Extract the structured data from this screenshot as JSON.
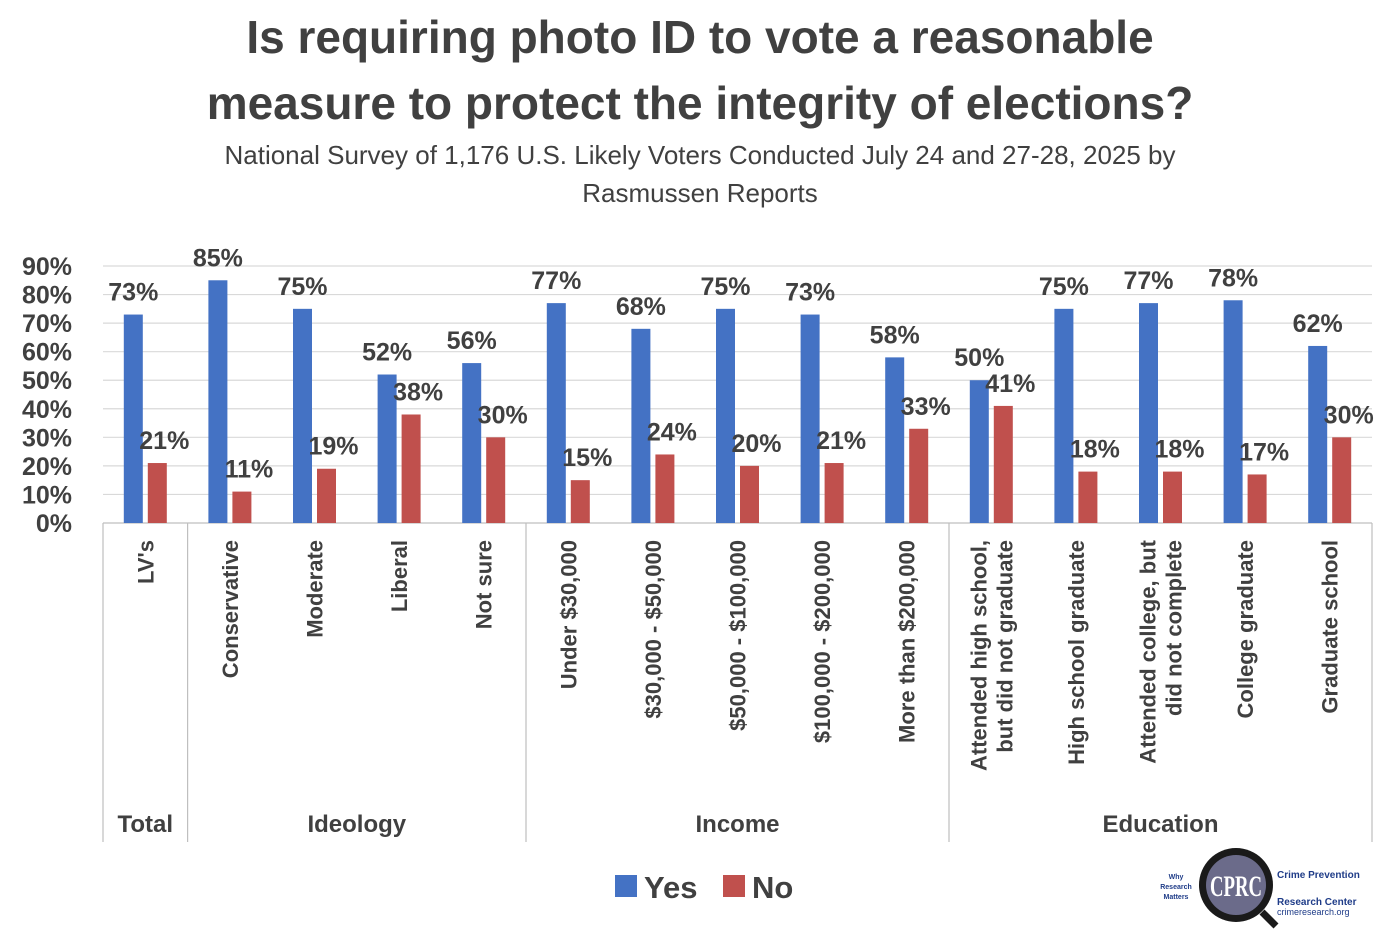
{
  "chart_data": {
    "type": "bar",
    "title_lines": [
      "Is requiring photo ID to vote a reasonable",
      "measure to protect the integrity of elections?"
    ],
    "subtitle_lines": [
      "National Survey of 1,176 U.S. Likely Voters Conducted July 24 and 27-28, 2025 by",
      "Rasmussen Reports"
    ],
    "ylim": [
      0,
      90
    ],
    "yticks": [
      0,
      10,
      20,
      30,
      40,
      50,
      60,
      70,
      80,
      90
    ],
    "ytick_labels": [
      "0%",
      "10%",
      "20%",
      "30%",
      "40%",
      "50%",
      "60%",
      "70%",
      "80%",
      "90%"
    ],
    "grid": true,
    "legend_placement": "bottom-center",
    "categories": [
      [
        "LV's"
      ],
      [
        "Conservative"
      ],
      [
        "Moderate"
      ],
      [
        "Liberal"
      ],
      [
        "Not sure"
      ],
      [
        "Under $30,000"
      ],
      [
        "$30,000 - $50,000"
      ],
      [
        "$50,000 - $100,000"
      ],
      [
        "$100,000 - $200,000"
      ],
      [
        "More than $200,000"
      ],
      [
        "Attended high school,",
        "but did not graduate"
      ],
      [
        "High school graduate"
      ],
      [
        "Attended college, but",
        "did not complete"
      ],
      [
        "College graduate"
      ],
      [
        "Graduate school"
      ]
    ],
    "groups": [
      {
        "name": "Total",
        "count": 1
      },
      {
        "name": "Ideology",
        "count": 4
      },
      {
        "name": "Income",
        "count": 5
      },
      {
        "name": "Education",
        "count": 5
      }
    ],
    "series": [
      {
        "name": "Yes",
        "color": "#4472c4",
        "values": [
          73,
          85,
          75,
          52,
          56,
          77,
          68,
          75,
          73,
          58,
          50,
          75,
          77,
          78,
          62
        ],
        "labels": [
          "73%",
          "85%",
          "75%",
          "52%",
          "56%",
          "77%",
          "68%",
          "75%",
          "73%",
          "58%",
          "50%",
          "75%",
          "77%",
          "78%",
          "62%"
        ]
      },
      {
        "name": "No",
        "color": "#c0504d",
        "values": [
          21,
          11,
          19,
          38,
          30,
          15,
          24,
          20,
          21,
          33,
          41,
          18,
          18,
          17,
          30
        ],
        "labels": [
          "21%",
          "11%",
          "19%",
          "38%",
          "30%",
          "15%",
          "24%",
          "20%",
          "21%",
          "33%",
          "41%",
          "18%",
          "18%",
          "17%",
          "30%"
        ]
      }
    ]
  },
  "logo": {
    "tagline": [
      "Why",
      "Research",
      "Matters"
    ],
    "monogram": "CPRC",
    "name_lines": [
      "Crime Prevention",
      "Research Center"
    ],
    "url": "crimeresearch.org"
  }
}
